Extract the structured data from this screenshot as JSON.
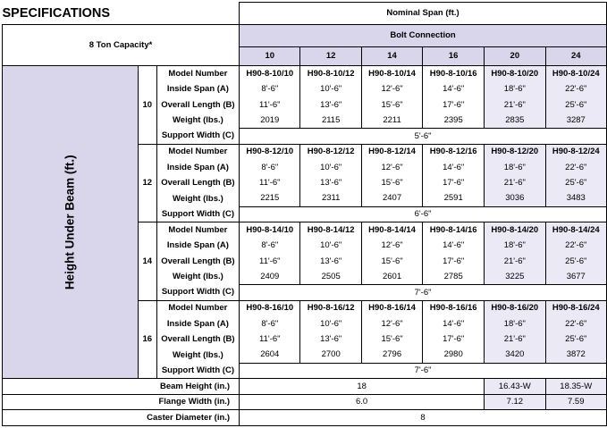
{
  "title": "SPECIFICATIONS",
  "header": {
    "nominal_span": "Nominal Span (ft.)",
    "capacity": "8 Ton Capacity*",
    "bolt_connection": "Bolt Connection",
    "height_under_beam": "Height Under Beam (ft.)"
  },
  "spans": [
    "10",
    "12",
    "14",
    "16",
    "20",
    "24"
  ],
  "row_labels": {
    "model": "Model Number",
    "inside": "Inside Span (A)",
    "overall": "Overall Length (B)",
    "weight": "Weight (lbs.)",
    "support": "Support Width (C)"
  },
  "groups": [
    {
      "height": "10",
      "models": [
        "H90-8-10/10",
        "H90-8-10/12",
        "H90-8-10/14",
        "H90-8-10/16",
        "H90-8-10/20",
        "H90-8-10/24"
      ],
      "inside": [
        "8'-6\"",
        "10'-6\"",
        "12'-6\"",
        "14'-6\"",
        "18'-6\"",
        "22'-6\""
      ],
      "overall": [
        "11'-6\"",
        "13'-6\"",
        "15'-6\"",
        "17'-6\"",
        "21'-6\"",
        "25'-6\""
      ],
      "weight": [
        "2019",
        "2115",
        "2211",
        "2395",
        "2835",
        "3287"
      ],
      "support": "5'-6\""
    },
    {
      "height": "12",
      "models": [
        "H90-8-12/10",
        "H90-8-12/12",
        "H90-8-12/14",
        "H90-8-12/16",
        "H90-8-12/20",
        "H90-8-12/24"
      ],
      "inside": [
        "8'-6\"",
        "10'-6\"",
        "12'-6\"",
        "14'-6\"",
        "18'-6\"",
        "22'-6\""
      ],
      "overall": [
        "11'-6\"",
        "13'-6\"",
        "15'-6\"",
        "17'-6\"",
        "21'-6\"",
        "25'-6\""
      ],
      "weight": [
        "2215",
        "2311",
        "2407",
        "2591",
        "3036",
        "3483"
      ],
      "support": "6'-6\""
    },
    {
      "height": "14",
      "models": [
        "H90-8-14/10",
        "H90-8-14/12",
        "H90-8-14/14",
        "H90-8-14/16",
        "H90-8-14/20",
        "H90-8-14/24"
      ],
      "inside": [
        "8'-6\"",
        "10'-6\"",
        "12'-6\"",
        "14'-6\"",
        "18'-6\"",
        "22'-6\""
      ],
      "overall": [
        "11'-6\"",
        "13'-6\"",
        "15'-6\"",
        "17'-6\"",
        "21'-6\"",
        "25'-6\""
      ],
      "weight": [
        "2409",
        "2505",
        "2601",
        "2785",
        "3225",
        "3677"
      ],
      "support": "7'-6\""
    },
    {
      "height": "16",
      "models": [
        "H90-8-16/10",
        "H90-8-16/12",
        "H90-8-16/14",
        "H90-8-16/16",
        "H90-8-16/20",
        "H90-8-16/24"
      ],
      "inside": [
        "8'-6\"",
        "10'-6\"",
        "12'-6\"",
        "14'-6\"",
        "18'-6\"",
        "22'-6\""
      ],
      "overall": [
        "11'-6\"",
        "13'-6\"",
        "15'-6\"",
        "17'-6\"",
        "21'-6\"",
        "25'-6\""
      ],
      "weight": [
        "2604",
        "2700",
        "2796",
        "2980",
        "3420",
        "3872"
      ],
      "support": "7'-6\""
    }
  ],
  "footer": {
    "beam_height_label": "Beam Height (in.)",
    "beam_height_main": "18",
    "beam_height_20": "16.43-W",
    "beam_height_24": "18.35-W",
    "flange_label": "Flange Width (in.)",
    "flange_main": "6.0",
    "flange_20": "7.12",
    "flange_24": "7.59",
    "caster_label": "Caster Diameter (in.)",
    "caster_value": "8"
  },
  "colors": {
    "lavender": "#d9d6ec",
    "lavender_light": "#ebe9f5"
  }
}
